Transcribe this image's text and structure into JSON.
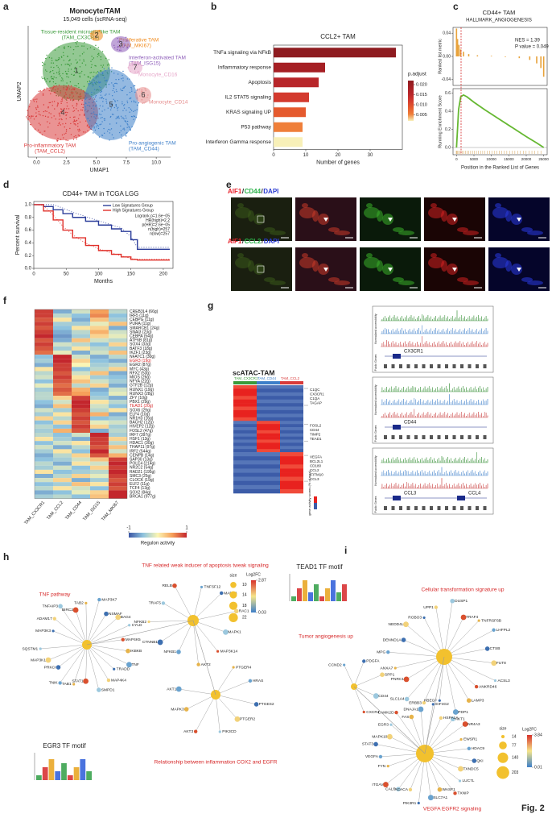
{
  "figure_label": "Fig. 2",
  "panels": {
    "a": {
      "letter": "a",
      "title": "Monocyte/TAM",
      "subtitle": "15,049 cells (scRNA-seq)",
      "xlabel": "UMAP1",
      "ylabel": "UMAP2",
      "xlim": [
        -0.7,
        11.2
      ],
      "xticks": [
        {
          "value": 0,
          "label": "0.0"
        },
        {
          "value": 2.5,
          "label": "2.5"
        },
        {
          "value": 5,
          "label": "5.0"
        },
        {
          "value": 7.5,
          "label": "7.5"
        },
        {
          "value": 10,
          "label": "10.0"
        }
      ],
      "clusters": [
        {
          "id": "1",
          "name": "Tissue-resident microglia-like TAM",
          "code": "(TAM_CX3CR1)",
          "color": "#3a9a3a"
        },
        {
          "id": "2",
          "name": "Proliferative TAM",
          "code": "(TAM_MKI67)",
          "color": "#f08a1c"
        },
        {
          "id": "3",
          "name": "Interferon-activated TAM",
          "code": "(TAM_ISG15)",
          "color": "#8c5bb8"
        },
        {
          "id": "4",
          "name": "Pro-inflammatory TAM",
          "code": "(TAM_CCL2)",
          "color": "#d93a3a"
        },
        {
          "id": "5",
          "name": "Pro-angiogenic TAM",
          "code": "(TAM_CD44)",
          "color": "#3d7fc9"
        },
        {
          "id": "6",
          "name": "Monocyte_CD14",
          "color": "#e58a8a"
        },
        {
          "id": "7",
          "name": "Monocyte_CD16",
          "color": "#e6a6c9"
        }
      ]
    },
    "b": {
      "letter": "b",
      "title": "CCL2+ TAM",
      "xlabel": "Number of genes",
      "categories": [
        "TNFa signaling via NFkB",
        "Inflammatory response",
        "Apoptosis",
        "IL2 STAT5 signaling",
        "KRAS signaling UP",
        "P53 pathway",
        "Interferon Gamma response"
      ],
      "values": [
        38,
        16,
        14,
        11,
        10,
        9,
        9
      ],
      "colors": [
        "#8e1b20",
        "#a51f24",
        "#b8262a",
        "#d33a2e",
        "#e55a2e",
        "#ef7f3a",
        "#f8f0b8"
      ],
      "xlim": [
        0,
        40
      ],
      "xticks": [
        0,
        10,
        20,
        30
      ],
      "legend_title": "p.adjust",
      "legend_ticks": [
        {
          "value": 0.02,
          "label": "0.020"
        },
        {
          "value": 0.015,
          "label": "0.015"
        },
        {
          "value": 0.01,
          "label": "0.010"
        },
        {
          "value": 0.005,
          "label": "0.005"
        }
      ],
      "legend_lim": [
        0.002,
        0.022
      ]
    },
    "c": {
      "letter": "c",
      "title": "CD44+ TAM",
      "subtitle": "HALLMARK_ANGIOGENESIS",
      "nes": "NES = 1.39",
      "pvalue": "P value = 0.049",
      "ylabel_top": "Ranked list metric",
      "ylabel_bottom": "Running Enrichment Score",
      "xlabel": "Position in the Ranked List of Genes",
      "xlim": [
        -1000,
        26000
      ],
      "xticks": [
        0,
        5000,
        10000,
        15000,
        20000,
        25000
      ],
      "top_ylim": [
        -0.05,
        0.05
      ],
      "top_yticks": [
        -0.04,
        {
          "value": 0,
          "label": "0.00"
        },
        0.04
      ],
      "metric_x": [
        0,
        300,
        700,
        1200,
        2000,
        3500,
        6000,
        10000,
        14000,
        18000,
        21000,
        23000,
        24200,
        25000
      ],
      "metric": [
        0.048,
        0.03,
        0.02,
        0.012,
        0.008,
        0.004,
        0.002,
        0.001,
        -0.001,
        -0.003,
        -0.006,
        -0.012,
        -0.02,
        -0.035
      ],
      "bottom_ylim": [
        -0.08,
        0.65
      ],
      "bottom_yticks": [
        {
          "value": 0,
          "label": "0.0"
        },
        0.2,
        0.4,
        0.6
      ],
      "es_x": [
        0,
        600,
        1200,
        2000,
        3000,
        5000,
        8000,
        12000,
        16000,
        20000,
        23000,
        25000
      ],
      "es": [
        0,
        0.42,
        0.56,
        0.58,
        0.56,
        0.5,
        0.42,
        0.32,
        0.22,
        0.12,
        0.05,
        0
      ],
      "line_color": "#66b832",
      "bar_color": "#e8a23a"
    },
    "d": {
      "letter": "d",
      "title": "CD44+ TAM in TCGA LGG",
      "xlabel": "Months",
      "ylabel": "Percent survival",
      "legend": [
        "Low Signatures Group",
        "High Signatures Group"
      ],
      "stats": [
        "Logrank p=1.6e−05",
        "HR(high)=2.2",
        "p(HR)=2.6e−05",
        "n(high)=257",
        "n(low)=257"
      ],
      "xlim": [
        0,
        215
      ],
      "xticks": [
        0,
        50,
        100,
        150,
        200
      ],
      "ylim": [
        0,
        1.05
      ],
      "yticks": [
        {
          "value": 0,
          "label": "0.0"
        },
        0.2,
        0.4,
        0.6,
        0.8,
        {
          "value": 1,
          "label": "1.0"
        }
      ],
      "series": [
        {
          "color": "#2b3d9a",
          "x": [
            0,
            15,
            30,
            45,
            60,
            80,
            100,
            120,
            135,
            150,
            160,
            180,
            210
          ],
          "y": [
            1,
            0.97,
            0.92,
            0.86,
            0.8,
            0.74,
            0.68,
            0.62,
            0.58,
            0.45,
            0.3,
            0.3,
            0.3
          ]
        },
        {
          "color": "#e0302a",
          "x": [
            0,
            15,
            30,
            45,
            60,
            80,
            100,
            120,
            135,
            150,
            160,
            180,
            210
          ],
          "y": [
            1,
            0.9,
            0.76,
            0.6,
            0.48,
            0.36,
            0.28,
            0.22,
            0.18,
            0.14,
            0.13,
            0.13,
            0.13
          ]
        }
      ]
    },
    "e": {
      "letter": "e",
      "sep": "/",
      "colors": [
        "#e8202a",
        "#2bb24a",
        "#2a3bd1"
      ],
      "rows": [
        {
          "parts": [
            "AIF1",
            "CD44",
            "DAPI"
          ]
        },
        {
          "parts": [
            "AIF1",
            "CCL2",
            "DAPI"
          ]
        }
      ]
    },
    "f": {
      "letter": "f",
      "columns": [
        "TAM_CX3CR1",
        "TAM_CCL2",
        "TAM_CD44",
        "TAM_ISG15",
        "TAM_MKI67"
      ],
      "legend_title": "Regulon activity",
      "legend_ticks": [
        -1,
        1
      ],
      "scale_lim": [
        -1,
        1
      ],
      "scale_colors": [
        "#3b56a4",
        "#8fc3de",
        "#fbf5b4",
        "#f6a05a",
        "#c3262d"
      ],
      "rows": [
        {
          "name": "CREB3L4 (66g)",
          "values": [
            0.9,
            -0.6,
            -0.2,
            0.5,
            -0.3
          ]
        },
        {
          "name": "IRF5 (11g)",
          "values": [
            0.9,
            -0.3,
            -0.5,
            0.6,
            -0.5
          ]
        },
        {
          "name": "CEBPG (11g)",
          "values": [
            0.8,
            0.1,
            -0.6,
            0.3,
            -0.4
          ]
        },
        {
          "name": "PURA (11g)",
          "values": [
            0.9,
            -0.4,
            -0.4,
            -0.1,
            0.3
          ]
        },
        {
          "name": "SMARCB1 (24g)",
          "values": [
            0.8,
            -0.5,
            0.1,
            0.2,
            -0.6
          ]
        },
        {
          "name": "SNAI3 (23g)",
          "values": [
            0.9,
            -0.6,
            -0.3,
            0.4,
            -0.2
          ]
        },
        {
          "name": "CEBPA (54g)",
          "values": [
            1,
            -0.7,
            -0.4,
            0.2,
            -0.1
          ]
        },
        {
          "name": "ATF6B (81g)",
          "values": [
            0.8,
            -0.6,
            0.3,
            -0.2,
            -0.3
          ]
        },
        {
          "name": "SOX4 (33g)",
          "values": [
            0.9,
            -0.2,
            -0.3,
            -0.5,
            0.2
          ]
        },
        {
          "name": "BATF3 (18g)",
          "values": [
            0.8,
            -0.4,
            0.1,
            -0.3,
            -0.4
          ]
        },
        {
          "name": "IKZF1 (23g)",
          "values": [
            0.7,
            -0.1,
            -0.6,
            -0.2,
            0.3
          ]
        },
        {
          "name": "NFATC1 (30g)",
          "values": [
            -0.5,
            1,
            -0.2,
            -0.6,
            -0.3
          ]
        },
        {
          "name": "EGR3 (19g)",
          "values": [
            -0.4,
            1,
            0.2,
            -0.5,
            -0.6
          ],
          "color": "#d62728"
        },
        {
          "name": "EGR2 (87g)",
          "values": [
            -0.6,
            0.9,
            0,
            -0.4,
            -0.3
          ]
        },
        {
          "name": "MYC (43g)",
          "values": [
            0.1,
            0.9,
            -0.5,
            -0.3,
            0.2
          ]
        },
        {
          "name": "RFX2 (53g)",
          "values": [
            -0.3,
            0.8,
            -0.2,
            0.3,
            -0.6
          ]
        },
        {
          "name": "MIOS (26g)",
          "values": [
            -0.2,
            0.9,
            0.1,
            -0.4,
            -0.5
          ]
        },
        {
          "name": "NFYA (22g)",
          "values": [
            -0.5,
            0.8,
            0.3,
            -0.2,
            -0.4
          ]
        },
        {
          "name": "GTF2B (12g)",
          "values": [
            -0.1,
            0.7,
            -0.3,
            0.2,
            -0.6
          ]
        },
        {
          "name": "RUNX1 (19g)",
          "values": [
            -0.4,
            0.8,
            0.4,
            -0.6,
            -0.2
          ]
        },
        {
          "name": "RUNX3 (28g)",
          "values": [
            -0.3,
            0.7,
            0.5,
            -0.5,
            -0.1
          ]
        },
        {
          "name": "ZFY (10g)",
          "values": [
            -0.3,
            0.2,
            0.9,
            -0.4,
            -0.6
          ]
        },
        {
          "name": "PBX1 (29g)",
          "values": [
            -0.5,
            -0.2,
            1,
            0.1,
            -0.3
          ]
        },
        {
          "name": "TEAD1 (20g)",
          "values": [
            -0.6,
            0.3,
            1,
            -0.2,
            -0.5
          ],
          "color": "#d62728"
        },
        {
          "name": "SOX6 (29g)",
          "values": [
            -0.2,
            -0.4,
            0.9,
            -0.3,
            0.1
          ]
        },
        {
          "name": "ELF4 (10g)",
          "values": [
            -0.4,
            0.1,
            0.8,
            0.4,
            -0.6
          ]
        },
        {
          "name": "NR1H3 (16g)",
          "values": [
            0.2,
            -0.3,
            0.9,
            -0.5,
            -0.4
          ]
        },
        {
          "name": "BACH2 (12g)",
          "values": [
            -0.5,
            0.2,
            0.8,
            -0.1,
            -0.2
          ]
        },
        {
          "name": "HIVEP2 (12g)",
          "values": [
            -0.3,
            -0.5,
            0.9,
            0.2,
            -0.4
          ]
        },
        {
          "name": "FOSL2 (47g)",
          "values": [
            -0.4,
            0.4,
            0.8,
            -0.6,
            -0.3
          ]
        },
        {
          "name": "IRF7 (397g)",
          "values": [
            -0.3,
            -0.5,
            -0.2,
            1,
            -0.4
          ]
        },
        {
          "name": "HSF1 (13g)",
          "values": [
            0.1,
            -0.4,
            -0.6,
            0.9,
            0.2
          ]
        },
        {
          "name": "HDAC1 (30g)",
          "values": [
            -0.5,
            -0.2,
            0.1,
            0.9,
            -0.3
          ]
        },
        {
          "name": "THAP11 (97g)",
          "values": [
            -0.2,
            -0.6,
            -0.3,
            0.8,
            0.3
          ]
        },
        {
          "name": "IRF2 (544g)",
          "values": [
            -0.4,
            0.1,
            -0.5,
            1,
            -0.2
          ]
        },
        {
          "name": "CENPB (14g)",
          "values": [
            -0.6,
            -0.3,
            0.2,
            0.8,
            0.4
          ]
        },
        {
          "name": "SAP30 (13g)",
          "values": [
            -0.5,
            -0.4,
            -0.2,
            0.3,
            0.9
          ]
        },
        {
          "name": "POLE4 (214g)",
          "values": [
            -0.3,
            -0.6,
            0.1,
            -0.2,
            1
          ]
        },
        {
          "name": "NR2C2 (54g)",
          "values": [
            -0.4,
            -0.2,
            -0.5,
            0.2,
            0.9
          ]
        },
        {
          "name": "RAD21 (195g)",
          "values": [
            0.1,
            -0.5,
            -0.4,
            -0.3,
            1
          ]
        },
        {
          "name": "SMC3 (25g)",
          "values": [
            -0.6,
            -0.3,
            0.2,
            -0.1,
            0.9
          ]
        },
        {
          "name": "CLOCK (19g)",
          "values": [
            -0.2,
            0.2,
            -0.6,
            -0.4,
            0.8
          ]
        },
        {
          "name": "ELF2 (11g)",
          "values": [
            -0.5,
            -0.4,
            0.3,
            0.1,
            0.9
          ]
        },
        {
          "name": "TCF4 (13g)",
          "values": [
            -0.3,
            0.1,
            -0.2,
            -0.5,
            0.8
          ]
        },
        {
          "name": "SOX2 (84g)",
          "values": [
            -0.6,
            -0.5,
            -0.1,
            0.2,
            1
          ]
        },
        {
          "name": "BRCA1 (977g)",
          "values": [
            -0.4,
            -0.3,
            -0.5,
            0.3,
            1
          ]
        }
      ]
    },
    "g": {
      "letter": "g",
      "title": "scATAC-TAM",
      "columns": [
        "TAM_CX3CR1",
        "TAM_CD44",
        "TAM_CCL2"
      ],
      "column_colors": [
        "#3a9a3a",
        "#3d7fc9",
        "#d93a3a"
      ],
      "gene_groups": [
        [
          "C1QC",
          "CX3CR1",
          "C1QA",
          "TAGAP"
        ],
        [
          "FOSL2",
          "CD44",
          "TIMP2",
          "TEAD1"
        ],
        [
          "VEGFA",
          "BCL2L1",
          "CD180",
          "CCL2",
          "IFITM10",
          "CCL3"
        ]
      ],
      "legend_title": "gene activity scores (% of max)",
      "track_ylabel": "Normalized accessibility",
      "gene_track_label": "Public Genes",
      "tracks": [
        {
          "genes": [
            "CX3CR1"
          ]
        },
        {
          "genes": [
            "CD44"
          ]
        },
        {
          "genes": [
            "CCL3",
            "CCL4"
          ]
        }
      ]
    },
    "h": {
      "letter": "h",
      "node_palette": [
        "#3d6fb0",
        "#6aa3cf",
        "#e6b34a",
        "#d9502e",
        "#9cc8de",
        "#f2d27a"
      ],
      "hubs": [
        {
          "title": "TNF pathway",
          "genes": [
            "MAP3K3",
            "ADAM17",
            "TNFAIP3",
            "BIRC2",
            "TAB2",
            "MAP3K7",
            "NSMAF",
            "BAG4",
            "CYLD",
            "MAP4K5",
            "IKBKB",
            "TNF",
            "TRADD",
            "MAP4K4",
            "SMPD1",
            "STAT1",
            "TAB1",
            "TNIK",
            "PRKCI",
            "MAP3K1",
            "SQSTM1"
          ]
        },
        {
          "title": "TNF related weak inducer of apoptosis tweak signaling",
          "genes": [
            "TNFSF12",
            "MAPK8",
            "RAC1",
            "MAPK1",
            "MAP3K14",
            "AKT2",
            "NFKB1",
            "CTNNB1",
            "NFKB2",
            "TRAF5",
            "RELB"
          ]
        },
        {
          "title": "Relationship between inflammation COX2 and EGFR",
          "genes": [
            "PTGER4",
            "HRAS",
            "PTGES2",
            "PTGER2",
            "PIK3CD",
            "AKT3",
            "MAPK3",
            "AKT1"
          ]
        }
      ],
      "motif_title": "EGR3 TF motif",
      "size_title": "size",
      "size_ticks": [
        10,
        14,
        18,
        22
      ],
      "fc_title": "Log2FC",
      "fc_ticks": [
        2.87,
        0.03
      ],
      "fc_colors": [
        "#d7312b",
        "#f5e58a",
        "#3d7fc9"
      ]
    },
    "i": {
      "letter": "i",
      "node_palette": [
        "#3d6fb0",
        "#6aa3cf",
        "#e6b34a",
        "#d9502e",
        "#9cc8de",
        "#f2d27a"
      ],
      "hubs": [
        {
          "title": "Cellular transformation signature up",
          "genes": [
            "ROBO3",
            "UPP1",
            "DUSP1",
            "TRAF4",
            "TNFRSF6B",
            "LHFPL2",
            "CTSB",
            "FUT8",
            "ACSL3",
            "ANKRD46",
            "LAMP3",
            "PDP1",
            "HBEGF",
            "ERBB3",
            "SLC1A4",
            "PNRC1",
            "ANXA7",
            "MPG",
            "DENND1A",
            "NEDD4L"
          ]
        },
        {
          "title": "Tumor angiogenesis up",
          "genes": [
            "CCND2",
            "PDGFA",
            "SPP1",
            "CD44",
            "CXCR4"
          ]
        },
        {
          "title": "VEGFA EGFR2 signaling",
          "genes": [
            "FYN",
            "VEGFA",
            "STAT3",
            "MAPK10",
            "EGR3",
            "CAMK2D",
            "FAS",
            "DNAJA1",
            "EIF4G2",
            "HSPA1A",
            "AKT1",
            "NR4A3",
            "EWSR1",
            "HDAC9",
            "QKI",
            "TXNDC5",
            "LUC7L",
            "TXNIP",
            "WASF1",
            "SLC7A1",
            "PIK3R1",
            "ACACA",
            "CALR",
            "ITGAV"
          ]
        }
      ],
      "motif_title": "TEAD1 TF motif",
      "size_title": "size",
      "size_ticks": [
        14,
        77,
        140,
        203
      ],
      "fc_title": "Log2FC",
      "fc_ticks": [
        3.84,
        0.01
      ],
      "fc_colors": [
        "#d7312b",
        "#f5e58a",
        "#3d7fc9"
      ]
    }
  }
}
